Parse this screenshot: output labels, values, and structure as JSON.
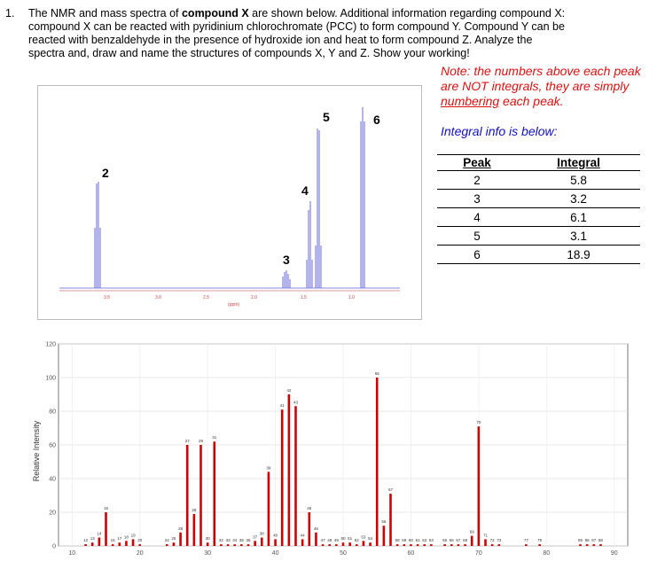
{
  "question": {
    "number": "1.",
    "line1_pre": "The NMR and mass spectra of ",
    "line1_bold": "compound X",
    "line1_post": " are shown below. Additional information regarding compound X:",
    "line2": "compound X can be reacted with pyridinium chlorochromate (PCC) to form compound Y. Compound Y can be",
    "line3": "reacted with benzaldehyde in the presence of hydroxide ion and heat to form compound Z. Analyze the",
    "line4": "spectra and, draw and name the structures of compounds X, Y and Z. Show your working!"
  },
  "note": {
    "pre": "Note: the numbers above each peak are NOT integrals, they are simply ",
    "underlined": "numbering",
    "post": " each peak."
  },
  "integral_info": "Integral info is below:",
  "integral_table": {
    "headers": [
      "Peak",
      "Integral"
    ],
    "rows": [
      [
        "2",
        "5.8"
      ],
      [
        "3",
        "3.2"
      ],
      [
        "4",
        "6.1"
      ],
      [
        "5",
        "3.1"
      ],
      [
        "6",
        "18.9"
      ]
    ]
  },
  "nmr": {
    "peak_labels": [
      "2",
      "3",
      "4",
      "5",
      "6"
    ],
    "axis_ticks": [
      "3.5",
      "3.0",
      "2.5",
      "2.0",
      "1.5",
      "1.0"
    ],
    "axis_unit": "(ppm)"
  },
  "chart_data": {
    "type": "bar",
    "ylabel": "Relative Intensity",
    "xlim": [
      8,
      92
    ],
    "ylim": [
      0,
      120
    ],
    "x_ticks": [
      10,
      20,
      30,
      40,
      50,
      60,
      70,
      80,
      90
    ],
    "y_ticks": [
      0,
      20,
      40,
      60,
      80,
      100,
      120
    ],
    "peaks": [
      [
        12,
        1
      ],
      [
        13,
        2
      ],
      [
        14,
        5
      ],
      [
        15,
        20
      ],
      [
        16,
        1
      ],
      [
        17,
        2
      ],
      [
        18,
        3
      ],
      [
        19,
        4
      ],
      [
        20,
        1
      ],
      [
        24,
        1
      ],
      [
        25,
        2
      ],
      [
        26,
        8
      ],
      [
        27,
        60
      ],
      [
        28,
        19
      ],
      [
        29,
        60
      ],
      [
        30,
        2
      ],
      [
        31,
        62
      ],
      [
        32,
        1
      ],
      [
        33,
        1
      ],
      [
        34,
        1
      ],
      [
        35,
        1
      ],
      [
        36,
        1
      ],
      [
        37,
        3
      ],
      [
        38,
        5
      ],
      [
        39,
        44
      ],
      [
        40,
        4
      ],
      [
        41,
        81
      ],
      [
        42,
        90
      ],
      [
        43,
        83
      ],
      [
        44,
        4
      ],
      [
        45,
        20
      ],
      [
        46,
        8
      ],
      [
        47,
        1
      ],
      [
        48,
        1
      ],
      [
        49,
        1
      ],
      [
        50,
        2
      ],
      [
        51,
        2
      ],
      [
        52,
        1
      ],
      [
        53,
        3
      ],
      [
        54,
        2
      ],
      [
        55,
        100
      ],
      [
        56,
        12
      ],
      [
        57,
        31
      ],
      [
        58,
        1
      ],
      [
        59,
        1
      ],
      [
        60,
        1
      ],
      [
        61,
        1
      ],
      [
        62,
        1
      ],
      [
        63,
        1
      ],
      [
        65,
        1
      ],
      [
        66,
        1
      ],
      [
        67,
        1
      ],
      [
        68,
        1
      ],
      [
        69,
        6
      ],
      [
        70,
        71
      ],
      [
        71,
        4
      ],
      [
        72,
        1
      ],
      [
        73,
        1
      ],
      [
        77,
        1
      ],
      [
        79,
        1
      ],
      [
        85,
        1
      ],
      [
        86,
        1
      ],
      [
        87,
        1
      ],
      [
        88,
        1
      ]
    ]
  }
}
